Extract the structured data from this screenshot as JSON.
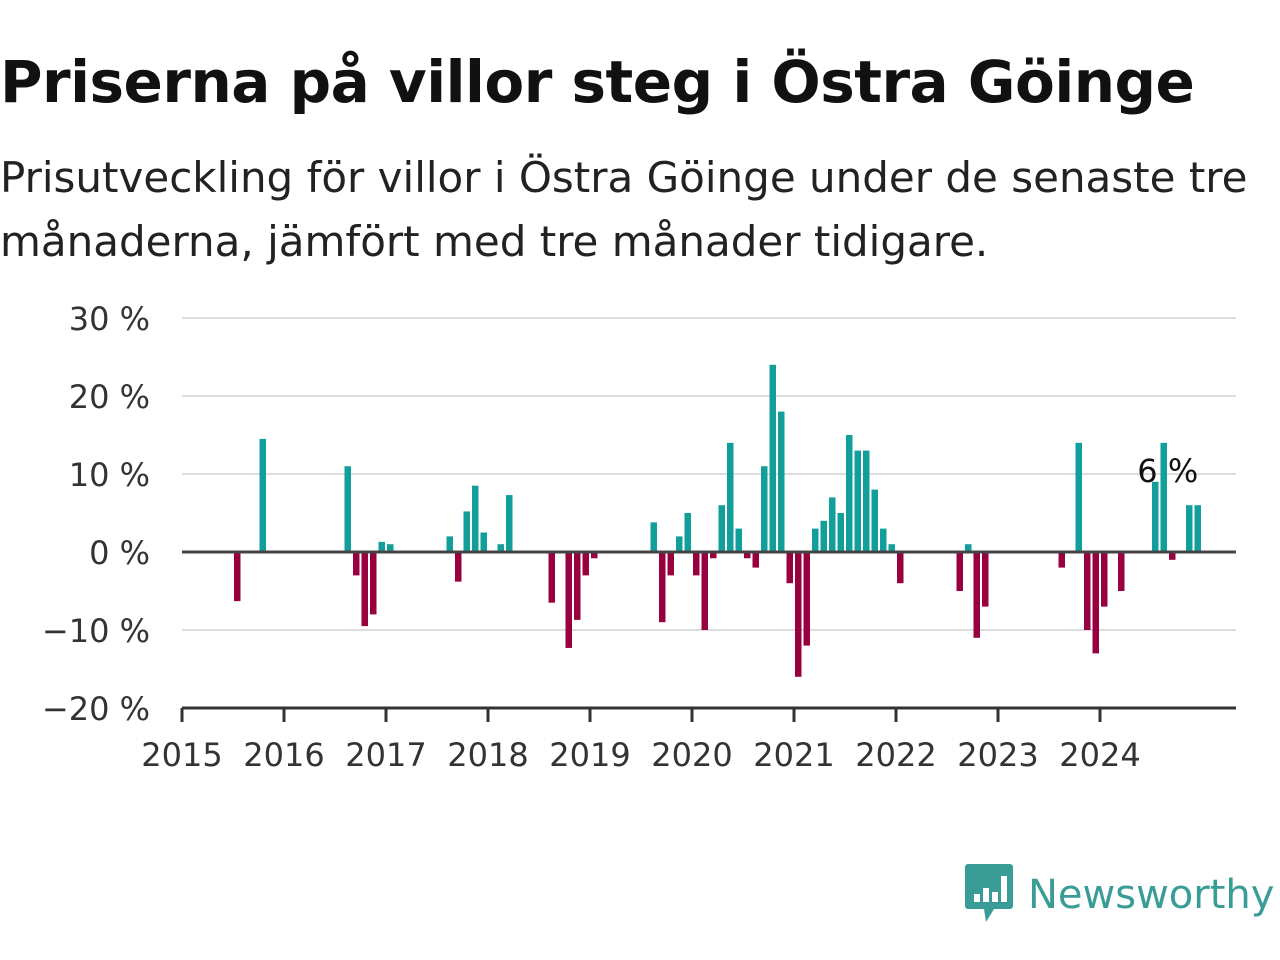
{
  "title": "Priserna på villor steg i Östra Göinge",
  "subtitle": "Prisutveckling för villor i Östra Göinge under de senaste tre månaderna, jämfört med tre månader tidigare.",
  "brand": {
    "name": "Newsworthy",
    "color": "#3a9c96",
    "icon": "newsworthy-logo-icon"
  },
  "colors": {
    "positive": "#129e9b",
    "negative": "#99003f",
    "grid": "#dddddd",
    "zero": "#444444"
  },
  "chart_data": {
    "type": "bar",
    "title": "Priserna på villor steg i Östra Göinge",
    "subtitle": "Prisutveckling för villor i Östra Göinge under de senaste tre månaderna, jämfört med tre månader tidigare.",
    "x_unit": "month",
    "x_start": "2015-01",
    "x_end": "2024-12",
    "x_ticks": [
      "2015",
      "2016",
      "2017",
      "2018",
      "2019",
      "2020",
      "2021",
      "2022",
      "2023",
      "2024"
    ],
    "y_ticks": [
      "30 %",
      "20 %",
      "10 %",
      "0 %",
      "−10 %",
      "−20 %"
    ],
    "ylim": [
      -20,
      30
    ],
    "grid": true,
    "last_label": "6 %",
    "values": [
      0,
      0,
      0,
      0,
      0,
      0,
      -6.3,
      0,
      0,
      14.5,
      0,
      0,
      0,
      0,
      0,
      0,
      0,
      0,
      0,
      11,
      -3,
      -9.5,
      -8,
      1.3,
      1,
      0,
      0,
      0,
      0,
      0,
      0,
      2,
      -3.8,
      5.2,
      8.5,
      2.5,
      0,
      1,
      7.3,
      0,
      0,
      0,
      0,
      -6.5,
      0,
      -12.3,
      -8.7,
      -3,
      -0.8,
      0,
      0,
      0,
      0,
      0,
      0,
      3.8,
      -9,
      -3,
      2,
      5,
      -3,
      -10,
      -0.8,
      6,
      14,
      3,
      -0.8,
      -2,
      11,
      24,
      18,
      -4,
      -16,
      -12,
      3,
      4,
      7,
      5,
      15,
      13,
      13,
      8,
      3,
      1,
      -4,
      0,
      0,
      0,
      0,
      0,
      0,
      -5,
      1,
      -11,
      -7,
      0,
      0,
      0,
      0,
      0,
      0,
      0,
      0,
      -2,
      0,
      14,
      -10,
      -13,
      -7,
      0,
      -5,
      0,
      0,
      0,
      9,
      14,
      -1,
      0,
      6,
      6
    ]
  }
}
